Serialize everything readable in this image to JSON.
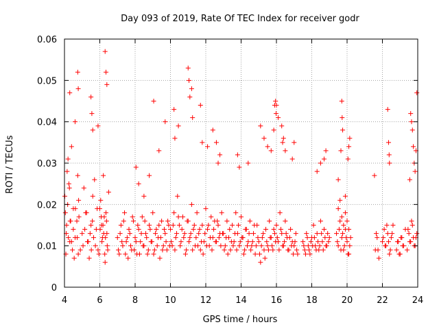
{
  "chart_data": {
    "type": "scatter",
    "title": "Day 093 of 2019, Rate Of TEC Index for receiver godr",
    "xlabel": "GPS time / hours",
    "ylabel": "ROTI / TECUs",
    "xlim": [
      4,
      24
    ],
    "ylim": [
      0,
      0.06
    ],
    "x_ticks": [
      4,
      6,
      8,
      10,
      12,
      14,
      16,
      18,
      20,
      22,
      24
    ],
    "x_tick_labels": [
      "4",
      "6",
      "8",
      "10",
      "12",
      "14",
      "16",
      "18",
      "20",
      "22",
      "24"
    ],
    "y_ticks": [
      0,
      0.01,
      0.02,
      0.03,
      0.04,
      0.05,
      0.06
    ],
    "y_tick_labels": [
      "0",
      "0.01",
      "0.02",
      "0.03",
      "0.04",
      "0.05",
      "0.06"
    ],
    "grid": true,
    "marker": "+",
    "marker_color": "#ff0000",
    "series": [
      {
        "name": "ROTI",
        "x": [
          4.02,
          4.05,
          4.1,
          4.15,
          4.2,
          4.25,
          4.3,
          4.35,
          4.4,
          4.45,
          4.5,
          4.55,
          4.6,
          4.7,
          4.75,
          4.8,
          4.9,
          5.0,
          5.1,
          5.2,
          5.3,
          5.4,
          5.5,
          5.6,
          5.7,
          5.8,
          5.9,
          6.0,
          6.05,
          6.1,
          6.15,
          6.2,
          6.25,
          6.3,
          6.35,
          6.4,
          6.45,
          6.5,
          4.08,
          4.12,
          4.18,
          4.22,
          4.28,
          4.32,
          4.4,
          4.5,
          4.62,
          4.72,
          4.78,
          4.82,
          5.05,
          5.15,
          5.25,
          5.35,
          5.45,
          5.52,
          5.58,
          5.65,
          5.75,
          5.85,
          5.95,
          6.02,
          6.08,
          6.12,
          6.18,
          6.22,
          6.28,
          6.32,
          6.38,
          6.42,
          4.3,
          4.6,
          4.75,
          4.78,
          5.5,
          5.55,
          5.6,
          5.9,
          6.3,
          6.35,
          6.4,
          7.0,
          7.1,
          7.2,
          7.3,
          7.4,
          7.5,
          7.6,
          7.7,
          7.8,
          7.9,
          8.0,
          8.1,
          8.2,
          8.3,
          8.4,
          8.5,
          8.6,
          8.7,
          8.8,
          8.9,
          9.0,
          9.1,
          9.2,
          9.3,
          9.4,
          9.5,
          9.6,
          9.7,
          9.8,
          9.9,
          7.05,
          7.15,
          7.25,
          7.35,
          7.45,
          7.55,
          7.65,
          7.75,
          7.85,
          7.95,
          8.05,
          8.15,
          8.25,
          8.35,
          8.45,
          8.55,
          8.65,
          8.75,
          8.85,
          8.95,
          9.05,
          9.15,
          9.25,
          9.35,
          9.45,
          9.55,
          9.65,
          9.75,
          9.85,
          9.95,
          8.05,
          8.2,
          8.5,
          8.8,
          9.05,
          9.35,
          9.7,
          10.0,
          10.1,
          10.2,
          10.3,
          10.4,
          10.5,
          10.6,
          10.7,
          10.8,
          10.9,
          11.0,
          11.1,
          11.2,
          11.3,
          11.4,
          11.5,
          11.6,
          11.7,
          11.8,
          11.9,
          12.0,
          12.1,
          12.2,
          12.3,
          12.4,
          12.5,
          12.6,
          12.7,
          12.8,
          12.9,
          10.05,
          10.15,
          10.25,
          10.35,
          10.45,
          10.55,
          10.65,
          10.75,
          10.85,
          10.95,
          11.05,
          11.15,
          11.25,
          11.35,
          11.45,
          11.55,
          11.65,
          11.75,
          11.85,
          11.95,
          12.05,
          12.15,
          12.25,
          12.35,
          12.45,
          12.55,
          12.65,
          12.75,
          12.85,
          12.95,
          10.2,
          10.25,
          10.45,
          11.0,
          11.05,
          11.1,
          11.2,
          11.25,
          11.7,
          11.8,
          12.1,
          12.4,
          12.6,
          12.7,
          12.8,
          13.0,
          13.1,
          13.2,
          13.3,
          13.4,
          13.5,
          13.6,
          13.7,
          13.8,
          13.9,
          14.0,
          14.1,
          14.2,
          14.3,
          14.4,
          14.5,
          14.6,
          14.7,
          14.8,
          14.9,
          15.0,
          15.1,
          15.2,
          15.3,
          15.4,
          15.5,
          15.6,
          15.7,
          15.8,
          15.9,
          13.05,
          13.15,
          13.25,
          13.35,
          13.45,
          13.55,
          13.65,
          13.75,
          13.85,
          13.95,
          14.05,
          14.15,
          14.25,
          14.35,
          14.45,
          14.55,
          14.65,
          14.75,
          14.85,
          14.95,
          15.05,
          15.15,
          15.25,
          15.35,
          15.45,
          15.55,
          15.65,
          15.75,
          15.85,
          15.95,
          13.8,
          13.9,
          14.4,
          15.1,
          15.3,
          15.5,
          15.7,
          15.85,
          15.9,
          16.0,
          16.1,
          16.2,
          16.3,
          16.4,
          16.5,
          16.6,
          16.7,
          16.8,
          16.9,
          17.0,
          17.1,
          17.2,
          17.5,
          17.6,
          17.7,
          17.8,
          17.9,
          18.0,
          18.1,
          18.2,
          18.3,
          18.4,
          18.5,
          18.6,
          18.7,
          18.8,
          18.9,
          19.0,
          16.05,
          16.15,
          16.25,
          16.35,
          16.45,
          16.55,
          16.65,
          16.75,
          16.85,
          16.95,
          17.05,
          17.15,
          17.55,
          17.65,
          17.75,
          17.85,
          17.95,
          18.05,
          18.15,
          18.25,
          18.35,
          18.45,
          18.55,
          18.65,
          18.75,
          18.85,
          18.95,
          15.95,
          15.98,
          16.0,
          16.1,
          16.3,
          16.35,
          16.4,
          16.5,
          16.9,
          17.0,
          18.3,
          18.5,
          18.7,
          18.8,
          19.4,
          19.5,
          19.6,
          19.7,
          19.8,
          19.9,
          20.0,
          20.1,
          20.2,
          19.45,
          19.55,
          19.65,
          19.75,
          19.85,
          19.95,
          20.05,
          20.15,
          19.5,
          19.6,
          19.7,
          19.8,
          19.9,
          20.0,
          20.1,
          19.5,
          19.7,
          19.72,
          19.75,
          19.65,
          20.05,
          20.1,
          20.15,
          19.9,
          21.6,
          21.7,
          21.8,
          22.0,
          22.1,
          22.2,
          22.3,
          22.4,
          22.5,
          22.6,
          22.8,
          22.9,
          23.0,
          23.1,
          23.2,
          23.3,
          23.4,
          23.5,
          23.6,
          23.7,
          23.8,
          23.9,
          21.65,
          21.75,
          22.05,
          22.15,
          22.25,
          22.35,
          22.45,
          22.55,
          22.85,
          22.95,
          23.05,
          23.15,
          23.45,
          23.55,
          23.65,
          23.75,
          23.85,
          23.95,
          21.55,
          22.3,
          22.35,
          22.4,
          22.38,
          23.55,
          23.6,
          23.65,
          23.7,
          23.75,
          23.8,
          23.85,
          23.9,
          23.95
        ],
        "y": [
          0.022,
          0.018,
          0.013,
          0.028,
          0.031,
          0.025,
          0.011,
          0.016,
          0.034,
          0.009,
          0.019,
          0.007,
          0.012,
          0.016,
          0.027,
          0.021,
          0.009,
          0.013,
          0.024,
          0.018,
          0.011,
          0.007,
          0.015,
          0.022,
          0.026,
          0.014,
          0.009,
          0.019,
          0.021,
          0.015,
          0.012,
          0.027,
          0.017,
          0.006,
          0.018,
          0.013,
          0.009,
          0.023,
          0.008,
          0.015,
          0.02,
          0.012,
          0.024,
          0.016,
          0.011,
          0.014,
          0.019,
          0.012,
          0.008,
          0.017,
          0.01,
          0.014,
          0.018,
          0.011,
          0.013,
          0.009,
          0.016,
          0.012,
          0.01,
          0.019,
          0.008,
          0.014,
          0.017,
          0.011,
          0.015,
          0.013,
          0.008,
          0.012,
          0.016,
          0.01,
          0.047,
          0.04,
          0.052,
          0.048,
          0.046,
          0.042,
          0.038,
          0.039,
          0.057,
          0.052,
          0.049,
          0.012,
          0.008,
          0.015,
          0.01,
          0.018,
          0.011,
          0.007,
          0.013,
          0.009,
          0.016,
          0.012,
          0.008,
          0.014,
          0.011,
          0.017,
          0.01,
          0.013,
          0.008,
          0.015,
          0.011,
          0.018,
          0.009,
          0.014,
          0.012,
          0.007,
          0.016,
          0.01,
          0.013,
          0.009,
          0.015,
          0.009,
          0.013,
          0.011,
          0.016,
          0.008,
          0.012,
          0.014,
          0.01,
          0.017,
          0.009,
          0.011,
          0.015,
          0.008,
          0.013,
          0.01,
          0.016,
          0.012,
          0.009,
          0.014,
          0.011,
          0.008,
          0.013,
          0.01,
          0.015,
          0.012,
          0.009,
          0.014,
          0.011,
          0.016,
          0.01,
          0.029,
          0.025,
          0.022,
          0.027,
          0.045,
          0.033,
          0.04,
          0.014,
          0.01,
          0.018,
          0.012,
          0.022,
          0.015,
          0.011,
          0.017,
          0.013,
          0.009,
          0.016,
          0.012,
          0.02,
          0.014,
          0.01,
          0.018,
          0.013,
          0.009,
          0.015,
          0.011,
          0.019,
          0.014,
          0.01,
          0.017,
          0.012,
          0.016,
          0.011,
          0.015,
          0.013,
          0.018,
          0.011,
          0.015,
          0.009,
          0.013,
          0.017,
          0.01,
          0.014,
          0.012,
          0.008,
          0.016,
          0.011,
          0.013,
          0.009,
          0.015,
          0.012,
          0.01,
          0.014,
          0.011,
          0.008,
          0.013,
          0.01,
          0.015,
          0.012,
          0.009,
          0.014,
          0.011,
          0.016,
          0.012,
          0.01,
          0.013,
          0.043,
          0.036,
          0.039,
          0.053,
          0.05,
          0.046,
          0.048,
          0.041,
          0.044,
          0.035,
          0.034,
          0.038,
          0.035,
          0.03,
          0.032,
          0.013,
          0.01,
          0.016,
          0.012,
          0.009,
          0.015,
          0.011,
          0.018,
          0.013,
          0.01,
          0.017,
          0.012,
          0.009,
          0.014,
          0.011,
          0.016,
          0.01,
          0.013,
          0.008,
          0.015,
          0.011,
          0.006,
          0.012,
          0.009,
          0.014,
          0.01,
          0.016,
          0.012,
          0.009,
          0.013,
          0.009,
          0.012,
          0.008,
          0.014,
          0.011,
          0.01,
          0.013,
          0.009,
          0.015,
          0.011,
          0.012,
          0.008,
          0.014,
          0.01,
          0.013,
          0.009,
          0.011,
          0.015,
          0.01,
          0.012,
          0.008,
          0.01,
          0.013,
          0.007,
          0.011,
          0.009,
          0.012,
          0.01,
          0.014,
          0.011,
          0.032,
          0.029,
          0.03,
          0.039,
          0.036,
          0.034,
          0.033,
          0.038,
          0.044,
          0.015,
          0.011,
          0.018,
          0.013,
          0.01,
          0.016,
          0.012,
          0.009,
          0.014,
          0.011,
          0.01,
          0.013,
          0.008,
          0.011,
          0.009,
          0.013,
          0.01,
          0.008,
          0.012,
          0.015,
          0.01,
          0.013,
          0.009,
          0.016,
          0.011,
          0.014,
          0.01,
          0.013,
          0.012,
          0.012,
          0.009,
          0.014,
          0.01,
          0.011,
          0.013,
          0.009,
          0.012,
          0.01,
          0.008,
          0.011,
          0.009,
          0.01,
          0.008,
          0.012,
          0.009,
          0.011,
          0.01,
          0.012,
          0.009,
          0.011,
          0.01,
          0.013,
          0.009,
          0.012,
          0.01,
          0.011,
          0.045,
          0.042,
          0.044,
          0.041,
          0.039,
          0.035,
          0.036,
          0.033,
          0.031,
          0.035,
          0.028,
          0.03,
          0.031,
          0.033,
          0.013,
          0.01,
          0.016,
          0.012,
          0.009,
          0.014,
          0.011,
          0.008,
          0.012,
          0.011,
          0.014,
          0.009,
          0.013,
          0.01,
          0.012,
          0.008,
          0.01,
          0.019,
          0.021,
          0.017,
          0.015,
          0.018,
          0.016,
          0.014,
          0.026,
          0.045,
          0.041,
          0.038,
          0.033,
          0.031,
          0.034,
          0.036,
          0.022,
          0.009,
          0.012,
          0.007,
          0.011,
          0.014,
          0.01,
          0.013,
          0.008,
          0.012,
          0.015,
          0.009,
          0.011,
          0.008,
          0.012,
          0.01,
          0.014,
          0.009,
          0.013,
          0.011,
          0.015,
          0.01,
          0.012,
          0.013,
          0.009,
          0.012,
          0.01,
          0.015,
          0.011,
          0.009,
          0.013,
          0.011,
          0.008,
          0.012,
          0.01,
          0.014,
          0.011,
          0.016,
          0.012,
          0.01,
          0.013,
          0.027,
          0.043,
          0.035,
          0.03,
          0.032,
          0.026,
          0.042,
          0.04,
          0.038,
          0.034,
          0.03,
          0.028,
          0.033,
          0.047
        ]
      }
    ]
  }
}
